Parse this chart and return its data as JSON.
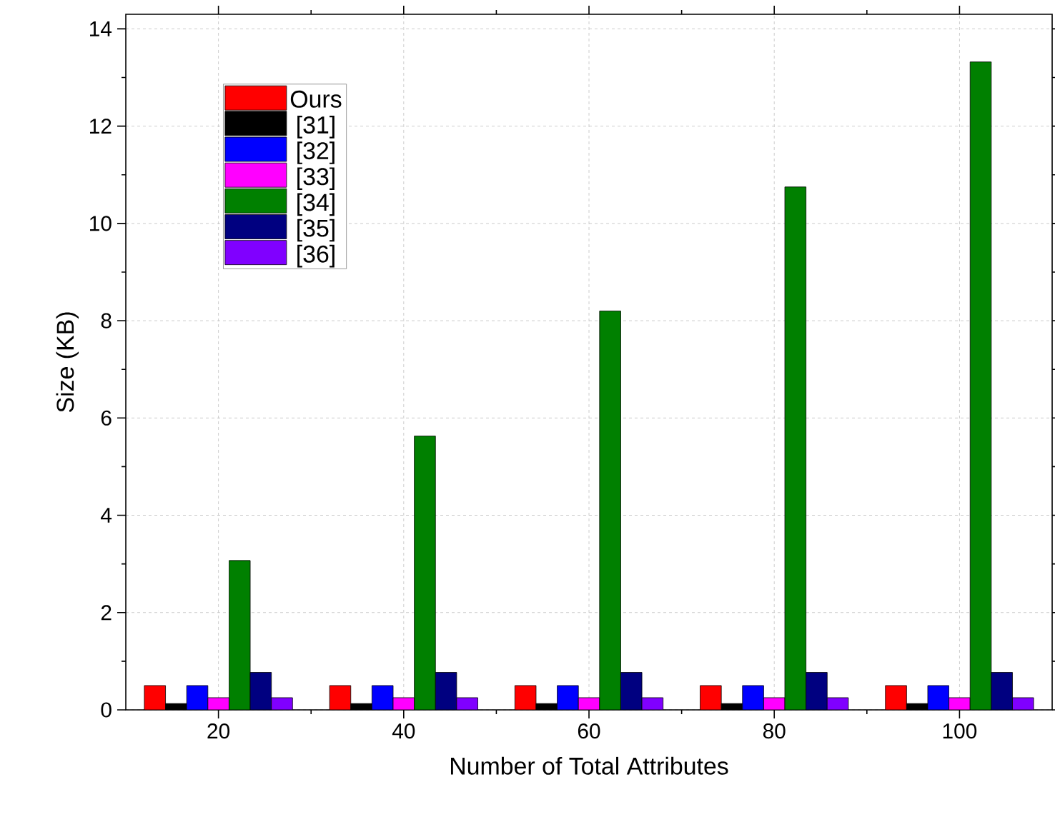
{
  "chart_data": {
    "type": "bar",
    "xlabel": "Number of Total Attributes",
    "ylabel": "Size (KB)",
    "x": [
      20,
      40,
      60,
      80,
      100
    ],
    "xlim": [
      10,
      110
    ],
    "xticks": [
      20,
      40,
      60,
      80,
      100
    ],
    "ylim": [
      0,
      14.3
    ],
    "yticks": [
      0,
      2,
      4,
      6,
      8,
      10,
      12,
      14
    ],
    "grid": true,
    "legend": "top left",
    "series": [
      {
        "name": "Ours",
        "color": "#ff0000",
        "values": [
          0.5,
          0.5,
          0.5,
          0.5,
          0.5
        ]
      },
      {
        "name": "[31]",
        "color": "#000000",
        "values": [
          0.13,
          0.13,
          0.13,
          0.13,
          0.13
        ]
      },
      {
        "name": "[32]",
        "color": "#0000ff",
        "values": [
          0.5,
          0.5,
          0.5,
          0.5,
          0.5
        ]
      },
      {
        "name": "[33]",
        "color": "#ff00ff",
        "values": [
          0.25,
          0.25,
          0.25,
          0.25,
          0.25
        ]
      },
      {
        "name": "[34]",
        "color": "#008000",
        "values": [
          3.07,
          5.63,
          8.2,
          10.75,
          13.32
        ]
      },
      {
        "name": "[35]",
        "color": "#000080",
        "values": [
          0.77,
          0.77,
          0.77,
          0.77,
          0.77
        ]
      },
      {
        "name": "[36]",
        "color": "#8000ff",
        "values": [
          0.25,
          0.25,
          0.25,
          0.25,
          0.25
        ]
      }
    ]
  }
}
